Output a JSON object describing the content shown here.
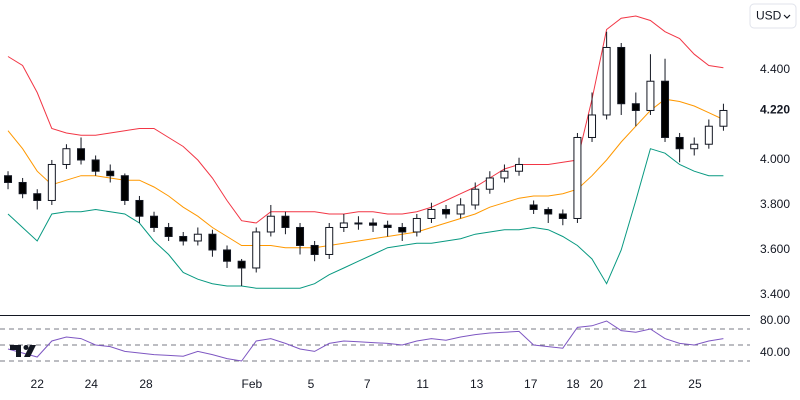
{
  "chart_data": {
    "type": "candlestick",
    "currency": "USD",
    "last_price": {
      "value": 4.22,
      "label": "4.220"
    },
    "xlim": [
      -0.55,
      50.82
    ],
    "xticks": [
      {
        "value": 2,
        "label": "22"
      },
      {
        "value": 5.7,
        "label": "24"
      },
      {
        "value": 9.45,
        "label": "28"
      },
      {
        "value": 16.7,
        "label": "Feb"
      },
      {
        "value": 20.75,
        "label": "5"
      },
      {
        "value": 24.6,
        "label": "7"
      },
      {
        "value": 28.4,
        "label": "11"
      },
      {
        "value": 32.1,
        "label": "13"
      },
      {
        "value": 35.8,
        "label": "17"
      },
      {
        "value": 38.7,
        "label": "18"
      },
      {
        "value": 40.3,
        "label": "20"
      },
      {
        "value": 43.3,
        "label": "21"
      },
      {
        "value": 47.05,
        "label": "25"
      }
    ],
    "ylim": [
      3.311,
      4.711
    ],
    "yticks": [
      {
        "value": 3.4,
        "label": "3.400"
      },
      {
        "value": 3.6,
        "label": "3.600"
      },
      {
        "value": 3.8,
        "label": "3.800"
      },
      {
        "value": 4.0,
        "label": "4.000"
      },
      {
        "value": 4.4,
        "label": "4.400"
      }
    ],
    "up_color": "#ffffff",
    "down_color": "#000000",
    "open": [
      3.93,
      3.9,
      3.85,
      3.82,
      3.98,
      4.05,
      4.0,
      3.95,
      3.93,
      3.82,
      3.75,
      3.7,
      3.66,
      3.64,
      3.67,
      3.6,
      3.55,
      3.52,
      3.68,
      3.75,
      3.7,
      3.62,
      3.58,
      3.7,
      3.72,
      3.72,
      3.71,
      3.7,
      3.68,
      3.74,
      3.78,
      3.76,
      3.8,
      3.87,
      3.92,
      3.95,
      3.8,
      3.78,
      3.76,
      3.74,
      4.1,
      4.2,
      4.5,
      4.25,
      4.22,
      4.35,
      4.1,
      4.05,
      4.07,
      4.15
    ],
    "high": [
      3.95,
      3.92,
      3.87,
      4.0,
      4.07,
      4.1,
      4.02,
      3.98,
      3.94,
      3.84,
      3.77,
      3.72,
      3.68,
      3.7,
      3.69,
      3.62,
      3.56,
      3.7,
      3.8,
      3.77,
      3.72,
      3.64,
      3.72,
      3.76,
      3.75,
      3.74,
      3.73,
      3.72,
      3.76,
      3.81,
      3.8,
      3.83,
      3.9,
      3.95,
      3.98,
      4.01,
      3.82,
      3.79,
      3.78,
      4.12,
      4.3,
      4.57,
      4.52,
      4.3,
      4.47,
      4.45,
      4.12,
      4.1,
      4.18,
      4.25
    ],
    "low": [
      3.87,
      3.83,
      3.78,
      3.8,
      3.96,
      3.98,
      3.93,
      3.9,
      3.8,
      3.72,
      3.68,
      3.64,
      3.62,
      3.62,
      3.57,
      3.52,
      3.44,
      3.5,
      3.66,
      3.67,
      3.58,
      3.55,
      3.56,
      3.68,
      3.69,
      3.68,
      3.66,
      3.64,
      3.66,
      3.72,
      3.74,
      3.74,
      3.78,
      3.85,
      3.9,
      3.93,
      3.76,
      3.72,
      3.71,
      3.72,
      4.08,
      4.18,
      4.2,
      4.15,
      4.2,
      4.08,
      3.99,
      4.02,
      4.05,
      4.13
    ],
    "close": [
      3.9,
      3.85,
      3.82,
      3.98,
      4.05,
      4.0,
      3.95,
      3.93,
      3.82,
      3.75,
      3.7,
      3.66,
      3.64,
      3.67,
      3.6,
      3.55,
      3.52,
      3.68,
      3.75,
      3.7,
      3.62,
      3.58,
      3.7,
      3.72,
      3.72,
      3.71,
      3.7,
      3.68,
      3.74,
      3.78,
      3.76,
      3.8,
      3.87,
      3.92,
      3.95,
      3.98,
      3.78,
      3.76,
      3.74,
      4.1,
      4.2,
      4.5,
      4.25,
      4.22,
      4.35,
      4.1,
      4.05,
      4.07,
      4.15,
      4.22
    ],
    "bands": {
      "upper": {
        "color": "#f23645",
        "values": [
          4.46,
          4.42,
          4.3,
          4.14,
          4.12,
          4.11,
          4.11,
          4.12,
          4.13,
          4.14,
          4.14,
          4.1,
          4.06,
          4.0,
          3.92,
          3.82,
          3.73,
          3.72,
          3.77,
          3.77,
          3.77,
          3.77,
          3.76,
          3.76,
          3.77,
          3.77,
          3.76,
          3.76,
          3.77,
          3.79,
          3.82,
          3.85,
          3.88,
          3.92,
          3.96,
          3.98,
          3.98,
          3.98,
          3.99,
          4.0,
          4.27,
          4.58,
          4.63,
          4.64,
          4.62,
          4.57,
          4.54,
          4.47,
          4.42,
          4.41
        ]
      },
      "middle": {
        "color": "#ff9800",
        "values": [
          4.13,
          4.05,
          3.95,
          3.89,
          3.91,
          3.93,
          3.93,
          3.92,
          3.91,
          3.91,
          3.88,
          3.84,
          3.79,
          3.75,
          3.7,
          3.66,
          3.62,
          3.62,
          3.62,
          3.61,
          3.61,
          3.61,
          3.62,
          3.63,
          3.64,
          3.65,
          3.66,
          3.67,
          3.68,
          3.7,
          3.72,
          3.74,
          3.76,
          3.79,
          3.81,
          3.83,
          3.84,
          3.84,
          3.85,
          3.87,
          3.93,
          4.0,
          4.08,
          4.15,
          4.22,
          4.27,
          4.26,
          4.24,
          4.21,
          4.18
        ]
      },
      "lower": {
        "color": "#089981",
        "values": [
          3.76,
          3.7,
          3.64,
          3.76,
          3.77,
          3.77,
          3.78,
          3.77,
          3.76,
          3.72,
          3.64,
          3.58,
          3.5,
          3.47,
          3.45,
          3.44,
          3.44,
          3.43,
          3.43,
          3.43,
          3.43,
          3.45,
          3.49,
          3.52,
          3.55,
          3.58,
          3.61,
          3.62,
          3.63,
          3.63,
          3.64,
          3.65,
          3.67,
          3.68,
          3.69,
          3.69,
          3.7,
          3.69,
          3.66,
          3.62,
          3.56,
          3.45,
          3.6,
          3.82,
          4.05,
          4.03,
          3.98,
          3.95,
          3.93,
          3.93
        ]
      }
    },
    "rsi": {
      "color": "#7e57c2",
      "ylim": [
        12.5,
        86.25
      ],
      "yticks": [
        {
          "value": 40,
          "label": "40.00"
        },
        {
          "value": 80,
          "label": "80.00"
        }
      ],
      "levels": [
        30,
        50,
        70
      ],
      "values": [
        45,
        40,
        35,
        55,
        60,
        58,
        50,
        48,
        42,
        40,
        38,
        37,
        36,
        42,
        38,
        33,
        30,
        55,
        58,
        52,
        45,
        42,
        52,
        55,
        54,
        53,
        52,
        50,
        55,
        58,
        56,
        60,
        63,
        65,
        66,
        67,
        50,
        48,
        46,
        72,
        74,
        80,
        68,
        66,
        70,
        58,
        52,
        50,
        55,
        58
      ]
    }
  }
}
